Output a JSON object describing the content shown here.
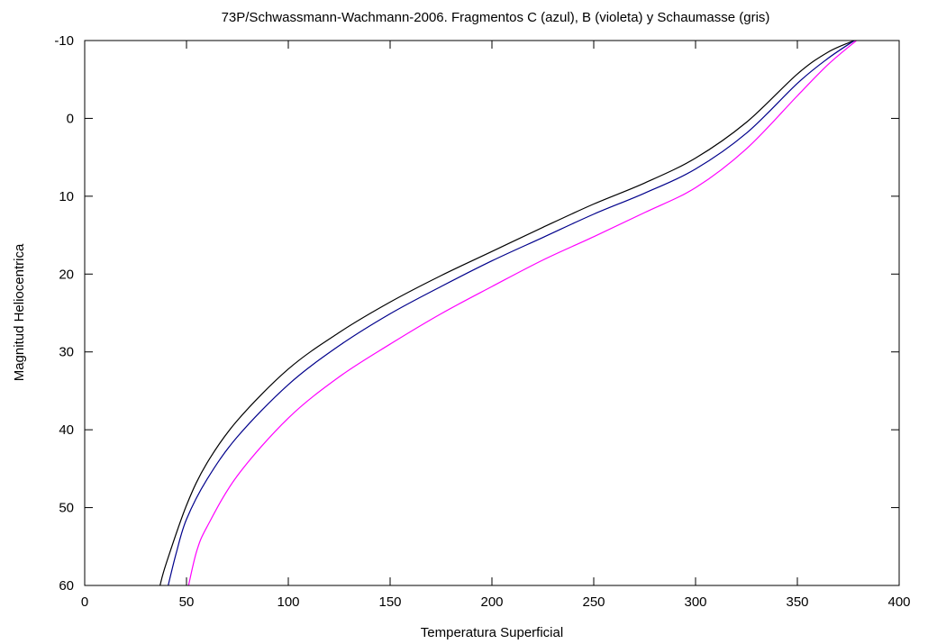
{
  "chart_data": {
    "type": "line",
    "title": "73P/Schwassmann-Wachmann-2006. Fragmentos C (azul), B (violeta) y Schaumasse (gris)",
    "xlabel": "Temperatura Superficial",
    "ylabel": "Magnitud Heliocentrica",
    "xlim": [
      0,
      400
    ],
    "ylim": [
      60,
      -10
    ],
    "y_inverted": true,
    "grid": false,
    "xticks": [
      0,
      50,
      100,
      150,
      200,
      250,
      300,
      350,
      400
    ],
    "yticks": [
      -10,
      0,
      10,
      20,
      30,
      40,
      50,
      60
    ],
    "series": [
      {
        "color": "#000000",
        "x": [
          37,
          40,
          50,
          60,
          75,
          100,
          125,
          150,
          175,
          200,
          225,
          250,
          275,
          300,
          325,
          350,
          365,
          378
        ],
        "y": [
          60,
          57.2,
          49.7,
          44.3,
          38.8,
          32.2,
          27.5,
          23.6,
          20.2,
          17.1,
          14.0,
          11.0,
          8.3,
          5.1,
          0.5,
          -5.7,
          -8.5,
          -10
        ]
      },
      {
        "color": "#00008b",
        "x": [
          41,
          45,
          50,
          60,
          75,
          100,
          125,
          150,
          175,
          200,
          225,
          250,
          275,
          300,
          325,
          350,
          365,
          378
        ],
        "y": [
          60,
          55.8,
          51.5,
          46.4,
          40.9,
          34.2,
          29.2,
          25.1,
          21.6,
          18.3,
          15.3,
          12.3,
          9.6,
          6.5,
          1.9,
          -4.5,
          -7.7,
          -10
        ]
      },
      {
        "color": "#ff00ff",
        "x": [
          51,
          55,
          60,
          75,
          100,
          125,
          150,
          175,
          200,
          225,
          250,
          275,
          300,
          325,
          350,
          365,
          379
        ],
        "y": [
          60,
          55.6,
          52.5,
          45.9,
          38.5,
          33.2,
          29.0,
          25.1,
          21.6,
          18.2,
          15.2,
          12.1,
          8.9,
          3.9,
          -2.9,
          -6.9,
          -10
        ]
      }
    ]
  }
}
